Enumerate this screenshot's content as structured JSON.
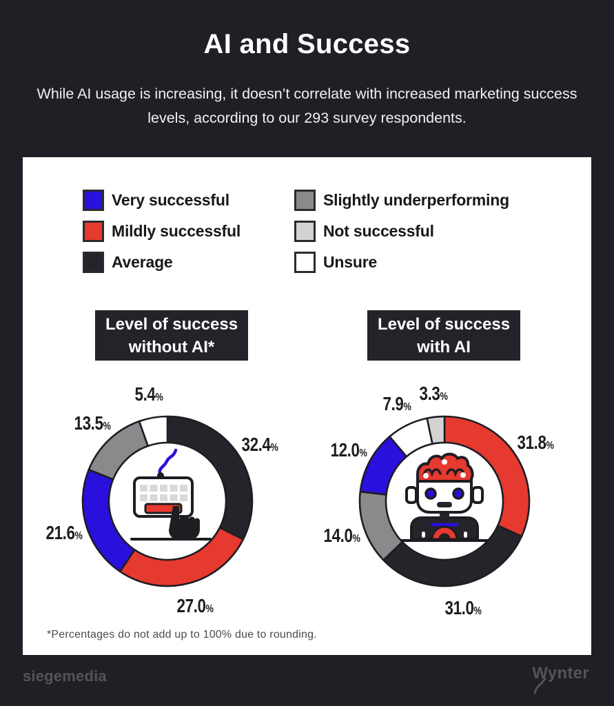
{
  "header": {
    "title": "AI and Success",
    "subtitle": "While AI usage is increasing, it doesn’t correlate with increased marketing success levels, according to our 293 survey respondents."
  },
  "legend": {
    "items": [
      {
        "label": "Very successful",
        "color": "#2a10dc"
      },
      {
        "label": "Mildly successful",
        "color": "#e6392f"
      },
      {
        "label": "Average",
        "color": "#25242b"
      },
      {
        "label": "Slightly underperforming",
        "color": "#8a8a8d"
      },
      {
        "label": "Not successful",
        "color": "#d3d3d4"
      },
      {
        "label": "Unsure",
        "color": "#ffffff"
      }
    ]
  },
  "chart_data": [
    {
      "type": "pie",
      "title": "Level of success without AI*",
      "title_lines": [
        "Level of success",
        "without AI*"
      ],
      "unit": "%",
      "center_icon": "keyboard-hand-icon",
      "segments": [
        {
          "label": "Average",
          "value": 32.4,
          "color": "#25242b"
        },
        {
          "label": "Mildly successful",
          "value": 27.0,
          "color": "#e6392f"
        },
        {
          "label": "Very successful",
          "value": 21.6,
          "color": "#2a10dc"
        },
        {
          "label": "Slightly underperforming",
          "value": 13.5,
          "color": "#8a8a8d"
        },
        {
          "label": "Unsure",
          "value": 5.4,
          "color": "#ffffff"
        }
      ]
    },
    {
      "type": "pie",
      "title": "Level of success with AI",
      "title_lines": [
        "Level of success",
        "with AI"
      ],
      "unit": "%",
      "center_icon": "robot-icon",
      "segments": [
        {
          "label": "Mildly successful",
          "value": 31.8,
          "color": "#e6392f"
        },
        {
          "label": "Average",
          "value": 31.0,
          "color": "#25242b"
        },
        {
          "label": "Slightly underperforming",
          "value": 14.0,
          "color": "#8a8a8d"
        },
        {
          "label": "Very successful",
          "value": 12.0,
          "color": "#2a10dc"
        },
        {
          "label": "Unsure",
          "value": 7.9,
          "color": "#ffffff"
        },
        {
          "label": "Not successful",
          "value": 3.3,
          "color": "#d3d3d4"
        }
      ]
    }
  ],
  "footnote": "*Percentages do not add up to 100% due to rounding.",
  "footer": {
    "left_logo": "siegemedia",
    "right_logo": "Wynter"
  }
}
